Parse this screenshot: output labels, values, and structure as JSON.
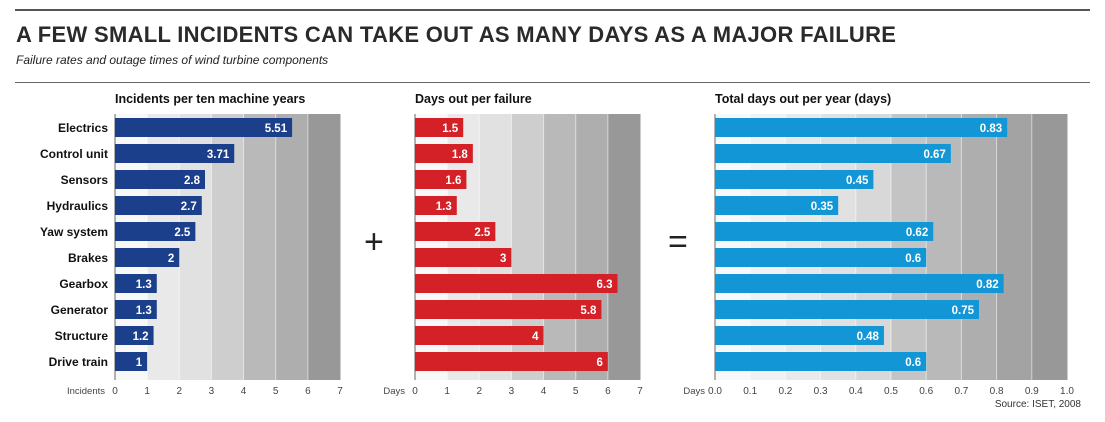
{
  "header": {
    "title": "A FEW SMALL INCIDENTS CAN TAKE OUT AS MANY DAYS AS A MAJOR FAILURE",
    "subtitle": "Failure rates and outage times of wind turbine components"
  },
  "operators": {
    "plus": "+",
    "equals": "="
  },
  "source": "Source: ISET, 2008",
  "colors": {
    "incidents": "#1c3f8c",
    "days_out": "#d42128",
    "total": "#1396d6"
  },
  "chart_data": [
    {
      "type": "bar",
      "orientation": "horizontal",
      "title": "Incidents per ten machine years",
      "xlabel": "Incidents",
      "categories": [
        "Electrics",
        "Control unit",
        "Sensors",
        "Hydraulics",
        "Yaw system",
        "Brakes",
        "Gearbox",
        "Generator",
        "Structure",
        "Drive train"
      ],
      "values": [
        5.51,
        3.71,
        2.8,
        2.7,
        2.5,
        2,
        1.3,
        1.3,
        1.2,
        1
      ],
      "value_labels": [
        "5.51",
        "3.71",
        "2.8",
        "2.7",
        "2.5",
        "2",
        "1.3",
        "1.3",
        "1.2",
        "1"
      ],
      "xlim": [
        0,
        7
      ],
      "ticks": [
        "0",
        "1",
        "2",
        "3",
        "4",
        "5",
        "6",
        "7"
      ],
      "color": "#1c3f8c"
    },
    {
      "type": "bar",
      "orientation": "horizontal",
      "title": "Days out per failure",
      "xlabel": "Days",
      "categories": [
        "Electrics",
        "Control unit",
        "Sensors",
        "Hydraulics",
        "Yaw system",
        "Brakes",
        "Gearbox",
        "Generator",
        "Structure",
        "Drive train"
      ],
      "values": [
        1.5,
        1.8,
        1.6,
        1.3,
        2.5,
        3,
        6.3,
        5.8,
        4,
        6
      ],
      "value_labels": [
        "1.5",
        "1.8",
        "1.6",
        "1.3",
        "2.5",
        "3",
        "6.3",
        "5.8",
        "4",
        "6"
      ],
      "xlim": [
        0,
        7
      ],
      "ticks": [
        "0",
        "1",
        "2",
        "3",
        "4",
        "5",
        "6",
        "7"
      ],
      "color": "#d42128"
    },
    {
      "type": "bar",
      "orientation": "horizontal",
      "title": "Total days out per year (days)",
      "xlabel": "Days",
      "categories": [
        "Electrics",
        "Control unit",
        "Sensors",
        "Hydraulics",
        "Yaw system",
        "Brakes",
        "Gearbox",
        "Generator",
        "Structure",
        "Drive train"
      ],
      "values": [
        0.83,
        0.67,
        0.45,
        0.35,
        0.62,
        0.6,
        0.82,
        0.75,
        0.48,
        0.6
      ],
      "value_labels": [
        "0.83",
        "0.67",
        "0.45",
        "0.35",
        "0.62",
        "0.6",
        "0.82",
        "0.75",
        "0.48",
        "0.6"
      ],
      "xlim": [
        0,
        1
      ],
      "ticks": [
        "0.0",
        "0.1",
        "0.2",
        "0.3",
        "0.4",
        "0.5",
        "0.6",
        "0.7",
        "0.8",
        "0.9",
        "1.0"
      ],
      "color": "#1396d6"
    }
  ]
}
